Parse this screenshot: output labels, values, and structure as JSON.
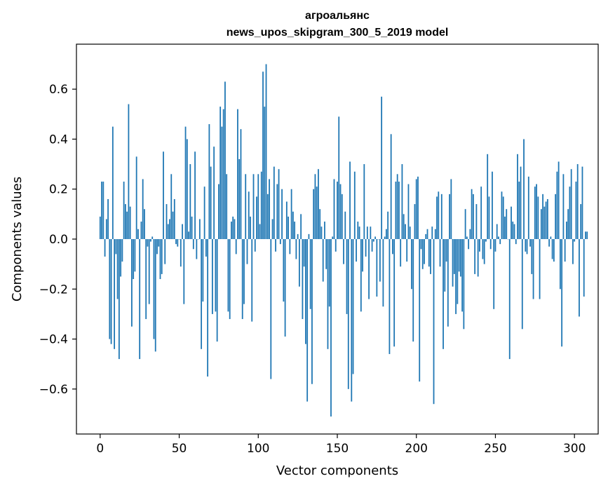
{
  "chart_data": {
    "type": "bar",
    "title_line1": "агроальянс",
    "title_line2": "news_upos_skipgram_300_5_2019 model",
    "xlabel": "Vector components",
    "ylabel": "Components values",
    "xlim": [
      -15,
      315
    ],
    "ylim": [
      -0.78,
      0.78
    ],
    "xticks": [
      0,
      50,
      100,
      150,
      200,
      250,
      300
    ],
    "xtick_labels": [
      "0",
      "50",
      "100",
      "150",
      "200",
      "250",
      "300"
    ],
    "yticks": [
      -0.6,
      -0.4,
      -0.2,
      0.0,
      0.2,
      0.4,
      0.6
    ],
    "ytick_labels": [
      "−0.6",
      "−0.4",
      "−0.2",
      "0.0",
      "0.2",
      "0.4",
      "0.6"
    ],
    "bar_color": "#1f77b4",
    "grid": false,
    "values": [
      0.09,
      0.23,
      0.23,
      -0.07,
      0.08,
      0.16,
      -0.4,
      -0.42,
      0.45,
      -0.44,
      -0.06,
      -0.24,
      -0.48,
      -0.15,
      -0.09,
      0.23,
      0.14,
      0.11,
      0.54,
      0.13,
      -0.35,
      -0.16,
      -0.13,
      0.33,
      0.04,
      -0.48,
      0.07,
      0.24,
      0.12,
      -0.32,
      -0.03,
      -0.26,
      -0.01,
      0.01,
      -0.4,
      -0.45,
      -0.06,
      -0.03,
      -0.16,
      -0.14,
      0.35,
      -0.1,
      0.14,
      0.06,
      0.08,
      0.26,
      0.11,
      0.16,
      -0.02,
      -0.03,
      0.0,
      -0.11,
      0.06,
      -0.26,
      0.45,
      0.4,
      0.03,
      0.3,
      0.09,
      -0.04,
      0.35,
      -0.08,
      0.0,
      0.08,
      -0.44,
      -0.25,
      0.21,
      -0.07,
      -0.55,
      0.46,
      0.29,
      -0.3,
      0.37,
      -0.29,
      -0.41,
      0.22,
      0.53,
      0.45,
      0.52,
      0.63,
      0.26,
      -0.29,
      -0.32,
      0.07,
      0.09,
      0.08,
      -0.06,
      0.52,
      0.32,
      0.44,
      -0.32,
      -0.26,
      0.26,
      -0.1,
      0.19,
      0.09,
      -0.33,
      0.26,
      -0.05,
      0.17,
      0.26,
      0.06,
      0.27,
      0.67,
      0.53,
      0.7,
      0.18,
      0.24,
      -0.56,
      0.08,
      0.29,
      -0.05,
      0.22,
      0.28,
      -0.02,
      0.2,
      -0.25,
      -0.39,
      0.15,
      0.09,
      -0.06,
      0.2,
      0.11,
      0.07,
      -0.08,
      0.02,
      -0.19,
      0.1,
      -0.32,
      -0.11,
      -0.42,
      -0.65,
      0.02,
      -0.28,
      -0.58,
      0.2,
      0.26,
      0.21,
      0.28,
      0.12,
      0.05,
      -0.17,
      0.07,
      -0.12,
      -0.44,
      -0.27,
      -0.71,
      0.01,
      0.24,
      -0.05,
      0.23,
      0.49,
      0.22,
      0.18,
      -0.1,
      0.11,
      -0.3,
      -0.6,
      0.31,
      -0.65,
      -0.54,
      0.27,
      -0.09,
      0.07,
      0.05,
      -0.29,
      -0.13,
      0.3,
      -0.07,
      0.05,
      -0.24,
      0.05,
      -0.05,
      -0.01,
      0.01,
      -0.23,
      0.0,
      -0.17,
      0.57,
      -0.27,
      0.01,
      0.04,
      0.11,
      -0.46,
      0.42,
      -0.06,
      -0.43,
      0.23,
      0.26,
      0.23,
      -0.11,
      0.3,
      0.1,
      0.06,
      -0.09,
      0.22,
      0.05,
      -0.2,
      -0.41,
      0.14,
      0.24,
      0.25,
      -0.57,
      -0.04,
      -0.12,
      -0.1,
      0.02,
      0.04,
      -0.11,
      -0.14,
      0.05,
      -0.66,
      0.04,
      0.17,
      0.19,
      -0.11,
      0.18,
      -0.44,
      -0.21,
      -0.09,
      -0.35,
      0.18,
      0.24,
      -0.19,
      -0.14,
      -0.3,
      -0.26,
      -0.13,
      -0.15,
      -0.29,
      -0.36,
      0.12,
      0.01,
      -0.04,
      0.04,
      0.2,
      0.18,
      -0.14,
      0.14,
      -0.15,
      -0.05,
      0.21,
      -0.08,
      -0.1,
      -0.01,
      0.34,
      0.17,
      -0.04,
      0.27,
      -0.28,
      -0.05,
      0.06,
      0.01,
      -0.02,
      0.19,
      0.17,
      0.09,
      0.12,
      0.0,
      -0.48,
      0.13,
      0.07,
      0.06,
      -0.02,
      0.34,
      0.23,
      0.29,
      -0.36,
      0.4,
      -0.05,
      -0.06,
      0.25,
      -0.03,
      -0.14,
      -0.24,
      0.21,
      0.22,
      0.17,
      -0.24,
      0.12,
      0.18,
      0.13,
      0.15,
      0.16,
      -0.03,
      0.01,
      -0.08,
      -0.09,
      0.18,
      0.27,
      0.31,
      -0.2,
      -0.43,
      0.26,
      -0.09,
      0.07,
      0.12,
      0.21,
      0.28,
      -0.1,
      -0.01,
      0.23,
      0.3,
      -0.31,
      0.14,
      0.29,
      -0.23,
      0.03,
      0.03
    ]
  }
}
